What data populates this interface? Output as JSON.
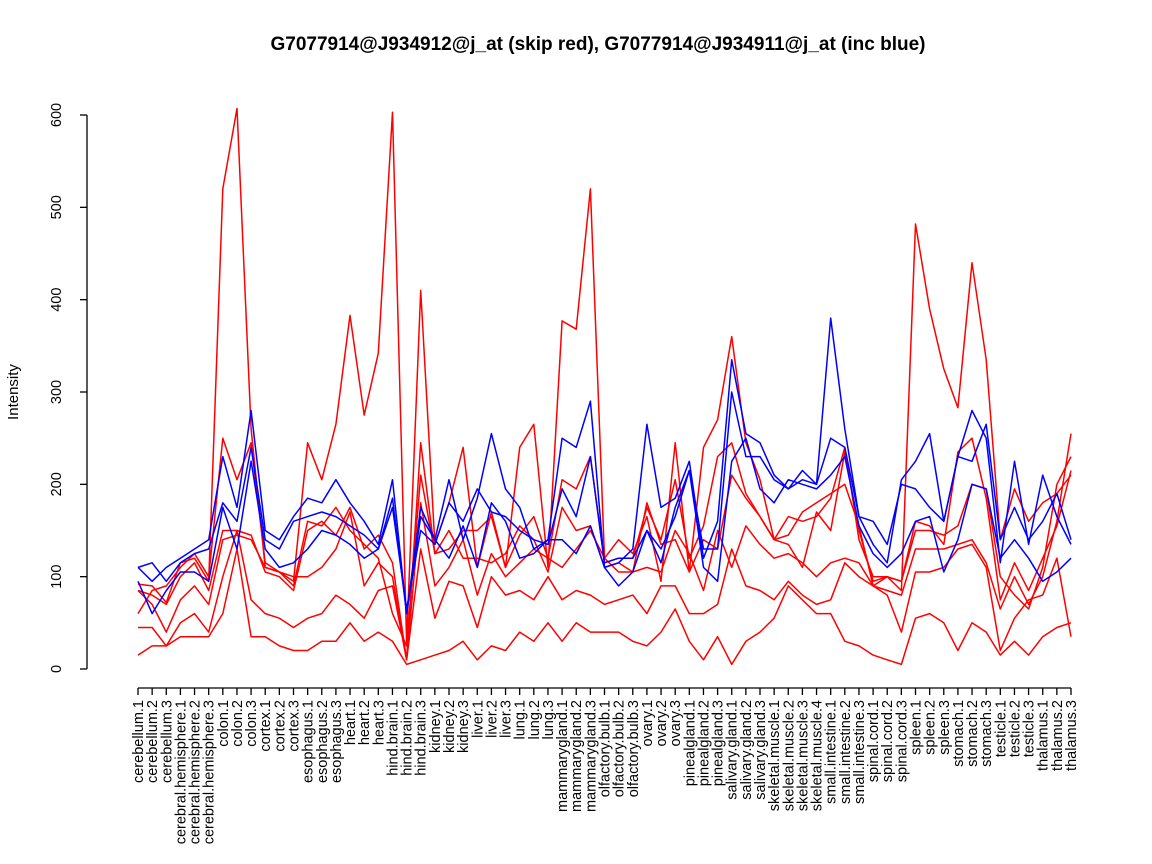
{
  "chart_data": {
    "type": "line",
    "title": "G7077914@J934912@j_at (skip red), G7077914@J934911@j_at (inc blue)",
    "xlabel": "",
    "ylabel": "Intensity",
    "ylim": [
      0,
      600
    ],
    "y_ticks": [
      0,
      100,
      200,
      300,
      400,
      500,
      600
    ],
    "categories": [
      "cerebellum.1",
      "cerebellum.2",
      "cerebellum.3",
      "cerebral.hemisphere.1",
      "cerebral.hemisphere.2",
      "cerebral.hemisphere.3",
      "colon.1",
      "colon.2",
      "colon.3",
      "cortex.1",
      "cortex.2",
      "cortex.3",
      "esophagus.1",
      "esophagus.2",
      "esophagus.3",
      "heart.1",
      "heart.2",
      "heart.3",
      "hind.brain.1",
      "hind.brain.2",
      "hind.brain.3",
      "kidney.1",
      "kidney.2",
      "kidney.3",
      "liver.1",
      "liver.2",
      "liver.3",
      "lung.1",
      "lung.2",
      "lung.3",
      "mammarygland.1",
      "mammarygland.2",
      "mammarygland.3",
      "olfactory.bulb.1",
      "olfactory.bulb.2",
      "olfactory.bulb.3",
      "ovary.1",
      "ovary.2",
      "ovary.3",
      "pinealgland.1",
      "pinealgland.2",
      "pinealgland.3",
      "salivary.gland.1",
      "salivary.gland.2",
      "salivary.gland.3",
      "skeletal.muscle.1",
      "skeletal.muscle.2",
      "skeletal.muscle.3",
      "skeletal.muscle.4",
      "small.intestine.1",
      "small.intestine.2",
      "small.intestine.3",
      "spinal.cord.1",
      "spinal.cord.2",
      "spinal.cord.3",
      "spleen.1",
      "spleen.2",
      "spleen.3",
      "stomach.1",
      "stomach.2",
      "stomach.3",
      "testicle.1",
      "testicle.2",
      "testicle.3",
      "thalamus.1",
      "thalamus.2",
      "thalamus.3"
    ],
    "series": [
      {
        "color": "#ff0000",
        "values": [
          92,
          90,
          72,
          115,
          120,
          95,
          520,
          607,
          260,
          110,
          105,
          95,
          245,
          205,
          265,
          383,
          275,
          342,
          603,
          30,
          410,
          135,
          180,
          240,
          110,
          170,
          110,
          240,
          265,
          110,
          377,
          368,
          520,
          120,
          140,
          125,
          165,
          95,
          245,
          105,
          240,
          270,
          360,
          245,
          205,
          140,
          135,
          110,
          170,
          150,
          235,
          150,
          95,
          100,
          85,
          482,
          390,
          325,
          283,
          440,
          335,
          140,
          195,
          160,
          180,
          190,
          210
        ]
      },
      {
        "color": "#ff0000",
        "values": [
          60,
          85,
          90,
          110,
          125,
          100,
          250,
          205,
          245,
          115,
          105,
          90,
          160,
          155,
          175,
          150,
          135,
          120,
          60,
          25,
          210,
          125,
          130,
          150,
          150,
          165,
          110,
          145,
          165,
          120,
          205,
          195,
          230,
          115,
          120,
          120,
          175,
          140,
          205,
          120,
          155,
          230,
          245,
          190,
          165,
          140,
          145,
          170,
          180,
          190,
          200,
          155,
          90,
          100,
          95,
          160,
          155,
          135,
          235,
          250,
          185,
          75,
          115,
          85,
          120,
          155,
          215
        ]
      },
      {
        "color": "#ff0000",
        "values": [
          85,
          80,
          70,
          100,
          115,
          85,
          150,
          150,
          145,
          105,
          100,
          85,
          150,
          160,
          145,
          175,
          130,
          145,
          115,
          10,
          245,
          125,
          150,
          120,
          120,
          115,
          125,
          155,
          140,
          105,
          175,
          150,
          155,
          110,
          115,
          105,
          180,
          135,
          140,
          105,
          140,
          130,
          210,
          185,
          165,
          140,
          165,
          160,
          165,
          185,
          240,
          140,
          100,
          100,
          95,
          150,
          150,
          145,
          155,
          200,
          195,
          100,
          80,
          65,
          110,
          200,
          230
        ]
      },
      {
        "color": "#ff0000",
        "values": [
          85,
          70,
          40,
          75,
          90,
          70,
          140,
          145,
          140,
          110,
          105,
          100,
          100,
          110,
          130,
          170,
          90,
          115,
          100,
          10,
          180,
          90,
          110,
          140,
          80,
          125,
          100,
          115,
          130,
          120,
          110,
          130,
          150,
          120,
          105,
          105,
          110,
          105,
          150,
          125,
          85,
          150,
          110,
          155,
          135,
          120,
          125,
          115,
          100,
          115,
          120,
          115,
          90,
          85,
          80,
          130,
          130,
          130,
          135,
          140,
          115,
          65,
          100,
          70,
          100,
          160,
          255
        ]
      },
      {
        "color": "#ff0000",
        "values": [
          45,
          45,
          25,
          50,
          60,
          40,
          100,
          150,
          75,
          60,
          55,
          45,
          55,
          60,
          80,
          70,
          55,
          85,
          90,
          10,
          130,
          55,
          95,
          90,
          45,
          100,
          80,
          85,
          75,
          100,
          75,
          85,
          80,
          70,
          75,
          80,
          60,
          90,
          90,
          60,
          60,
          70,
          130,
          90,
          85,
          75,
          95,
          80,
          70,
          75,
          115,
          100,
          90,
          80,
          40,
          105,
          105,
          110,
          130,
          135,
          110,
          20,
          55,
          75,
          80,
          120,
          35
        ]
      },
      {
        "color": "#ff0000",
        "values": [
          15,
          25,
          25,
          35,
          35,
          35,
          60,
          130,
          35,
          35,
          25,
          20,
          20,
          30,
          30,
          50,
          30,
          40,
          30,
          5,
          10,
          15,
          20,
          30,
          10,
          25,
          20,
          40,
          30,
          50,
          30,
          50,
          40,
          40,
          40,
          30,
          25,
          40,
          65,
          30,
          10,
          35,
          5,
          30,
          40,
          55,
          90,
          75,
          60,
          60,
          30,
          25,
          15,
          10,
          5,
          55,
          60,
          50,
          20,
          50,
          40,
          15,
          30,
          15,
          35,
          45,
          50
        ]
      },
      {
        "color": "#0000ff",
        "values": [
          110,
          95,
          110,
          120,
          130,
          140,
          230,
          175,
          280,
          150,
          140,
          165,
          185,
          180,
          205,
          180,
          160,
          135,
          205,
          60,
          175,
          140,
          205,
          140,
          185,
          255,
          195,
          175,
          130,
          140,
          250,
          240,
          290,
          110,
          115,
          130,
          265,
          175,
          185,
          225,
          120,
          160,
          335,
          255,
          245,
          210,
          195,
          215,
          200,
          380,
          260,
          165,
          135,
          115,
          205,
          225,
          255,
          160,
          230,
          280,
          250,
          115,
          225,
          135,
          210,
          165,
          135
        ]
      },
      {
        "color": "#0000ff",
        "values": [
          110,
          115,
          95,
          115,
          125,
          130,
          180,
          160,
          240,
          140,
          130,
          160,
          165,
          170,
          165,
          155,
          145,
          130,
          175,
          65,
          150,
          135,
          180,
          160,
          195,
          170,
          165,
          150,
          140,
          135,
          195,
          165,
          230,
          115,
          120,
          120,
          150,
          130,
          165,
          215,
          130,
          130,
          300,
          230,
          230,
          205,
          195,
          205,
          200,
          250,
          240,
          165,
          160,
          135,
          200,
          195,
          175,
          160,
          230,
          225,
          265,
          140,
          175,
          140,
          160,
          190,
          140
        ]
      },
      {
        "color": "#0000ff",
        "values": [
          95,
          60,
          85,
          105,
          105,
          95,
          175,
          130,
          225,
          130,
          110,
          115,
          130,
          150,
          145,
          135,
          120,
          130,
          185,
          60,
          165,
          140,
          120,
          155,
          110,
          180,
          160,
          120,
          125,
          140,
          140,
          125,
          155,
          110,
          90,
          105,
          150,
          115,
          175,
          215,
          110,
          95,
          225,
          250,
          195,
          180,
          205,
          200,
          195,
          210,
          230,
          155,
          125,
          110,
          125,
          160,
          165,
          105,
          140,
          200,
          195,
          120,
          140,
          120,
          95,
          105,
          120
        ]
      }
    ]
  }
}
